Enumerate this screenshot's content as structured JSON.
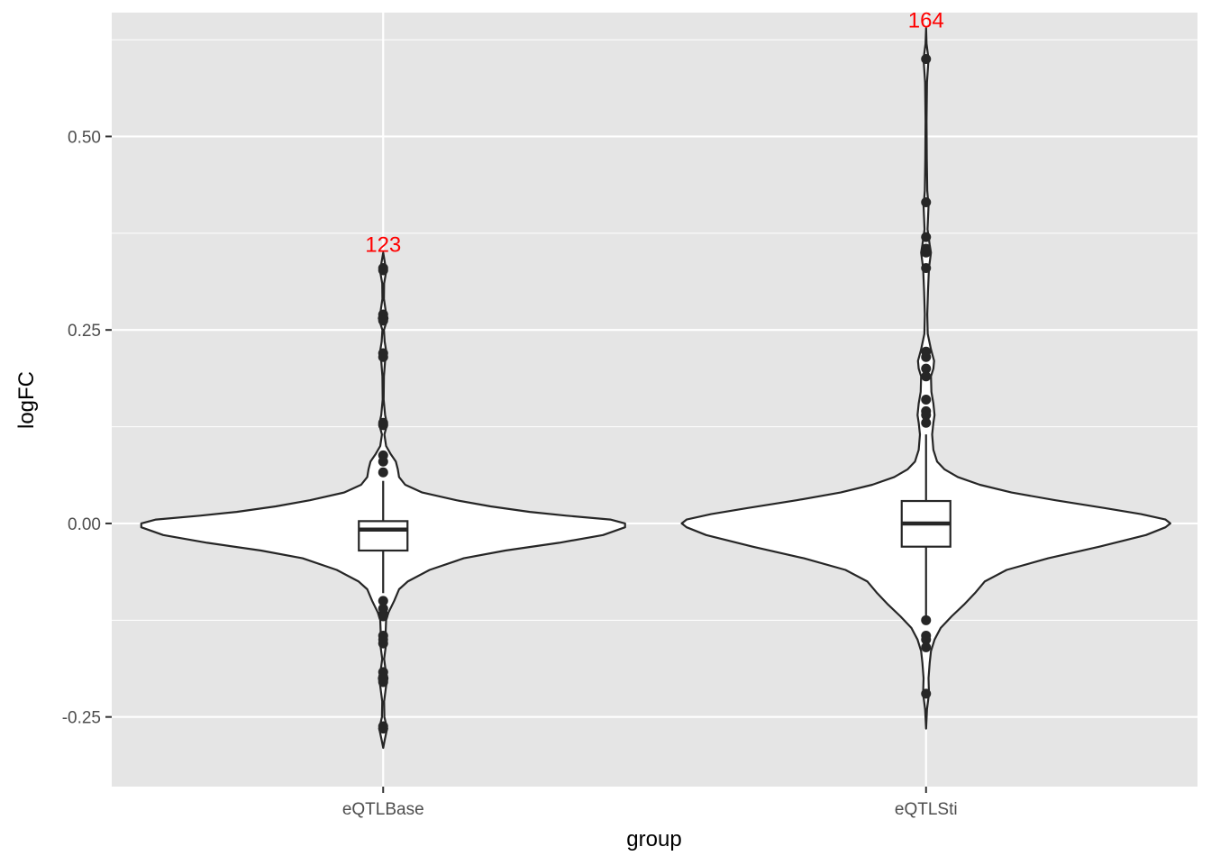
{
  "chart_data": {
    "type": "violin",
    "xlabel": "group",
    "ylabel": "logFC",
    "ylim": [
      -0.34,
      0.66
    ],
    "yticks": [
      {
        "value": -0.25,
        "label": "-0.25"
      },
      {
        "value": 0.0,
        "label": "0.00"
      },
      {
        "value": 0.25,
        "label": "0.25"
      },
      {
        "value": 0.5,
        "label": "0.50"
      }
    ],
    "categories": [
      "eQTLBase",
      "eQTLSti"
    ],
    "groups": [
      {
        "name": "eQTLBase",
        "count_label": "123",
        "count_label_y": 0.36,
        "box": {
          "lower_whisker": -0.09,
          "q1": -0.035,
          "median": -0.008,
          "q3": 0.003,
          "upper_whisker": 0.055
        },
        "outliers": [
          0.33,
          0.327,
          0.27,
          0.262,
          0.22,
          0.215,
          0.13,
          0.127,
          0.088,
          0.08,
          0.066,
          -0.1,
          -0.11,
          -0.117,
          -0.12,
          -0.145,
          -0.155,
          -0.192,
          -0.2,
          -0.205,
          -0.262,
          -0.265
        ],
        "violin_profile": [
          [
            -0.29,
            0.0
          ],
          [
            -0.28,
            0.006
          ],
          [
            -0.265,
            0.016
          ],
          [
            -0.25,
            0.005
          ],
          [
            -0.23,
            0.004
          ],
          [
            -0.21,
            0.012
          ],
          [
            -0.2,
            0.018
          ],
          [
            -0.19,
            0.01
          ],
          [
            -0.175,
            0.004
          ],
          [
            -0.16,
            0.01
          ],
          [
            -0.15,
            0.016
          ],
          [
            -0.14,
            0.01
          ],
          [
            -0.125,
            0.012
          ],
          [
            -0.115,
            0.022
          ],
          [
            -0.1,
            0.045
          ],
          [
            -0.085,
            0.065
          ],
          [
            -0.075,
            0.1
          ],
          [
            -0.06,
            0.19
          ],
          [
            -0.045,
            0.33
          ],
          [
            -0.035,
            0.5
          ],
          [
            -0.025,
            0.72
          ],
          [
            -0.015,
            0.9
          ],
          [
            -0.005,
            0.99
          ],
          [
            0.0,
            0.99
          ],
          [
            0.005,
            0.93
          ],
          [
            0.01,
            0.75
          ],
          [
            0.015,
            0.6
          ],
          [
            0.022,
            0.44
          ],
          [
            0.03,
            0.3
          ],
          [
            0.04,
            0.16
          ],
          [
            0.05,
            0.09
          ],
          [
            0.06,
            0.065
          ],
          [
            0.07,
            0.06
          ],
          [
            0.08,
            0.052
          ],
          [
            0.09,
            0.03
          ],
          [
            0.1,
            0.012
          ],
          [
            0.115,
            0.005
          ],
          [
            0.128,
            0.016
          ],
          [
            0.14,
            0.008
          ],
          [
            0.16,
            0.002
          ],
          [
            0.19,
            0.003
          ],
          [
            0.21,
            0.008
          ],
          [
            0.22,
            0.014
          ],
          [
            0.235,
            0.006
          ],
          [
            0.25,
            0.003
          ],
          [
            0.265,
            0.018
          ],
          [
            0.275,
            0.01
          ],
          [
            0.29,
            0.003
          ],
          [
            0.31,
            0.004
          ],
          [
            0.325,
            0.012
          ],
          [
            0.335,
            0.008
          ],
          [
            0.35,
            0.0
          ]
        ]
      },
      {
        "name": "eQTLSti",
        "count_label": "164",
        "count_label_y": 0.65,
        "box": {
          "lower_whisker": -0.12,
          "q1": -0.03,
          "median": 0.0,
          "q3": 0.029,
          "upper_whisker": 0.115
        },
        "outliers": [
          0.6,
          0.415,
          0.37,
          0.355,
          0.35,
          0.33,
          0.222,
          0.215,
          0.2,
          0.19,
          0.16,
          0.145,
          0.14,
          0.13,
          -0.125,
          -0.145,
          -0.15,
          -0.16,
          -0.22
        ],
        "violin_profile": [
          [
            -0.265,
            0.0
          ],
          [
            -0.24,
            0.004
          ],
          [
            -0.22,
            0.012
          ],
          [
            -0.2,
            0.01
          ],
          [
            -0.18,
            0.015
          ],
          [
            -0.165,
            0.02
          ],
          [
            -0.15,
            0.035
          ],
          [
            -0.135,
            0.06
          ],
          [
            -0.12,
            0.105
          ],
          [
            -0.105,
            0.155
          ],
          [
            -0.09,
            0.2
          ],
          [
            -0.075,
            0.24
          ],
          [
            -0.06,
            0.33
          ],
          [
            -0.045,
            0.5
          ],
          [
            -0.03,
            0.71
          ],
          [
            -0.015,
            0.9
          ],
          [
            -0.005,
            0.98
          ],
          [
            0.0,
            1.0
          ],
          [
            0.005,
            0.98
          ],
          [
            0.012,
            0.88
          ],
          [
            0.02,
            0.73
          ],
          [
            0.03,
            0.53
          ],
          [
            0.04,
            0.35
          ],
          [
            0.05,
            0.22
          ],
          [
            0.06,
            0.13
          ],
          [
            0.07,
            0.075
          ],
          [
            0.08,
            0.045
          ],
          [
            0.095,
            0.03
          ],
          [
            0.115,
            0.025
          ],
          [
            0.13,
            0.03
          ],
          [
            0.14,
            0.035
          ],
          [
            0.155,
            0.03
          ],
          [
            0.17,
            0.022
          ],
          [
            0.19,
            0.02
          ],
          [
            0.2,
            0.03
          ],
          [
            0.21,
            0.033
          ],
          [
            0.225,
            0.02
          ],
          [
            0.245,
            0.007
          ],
          [
            0.27,
            0.005
          ],
          [
            0.3,
            0.008
          ],
          [
            0.33,
            0.012
          ],
          [
            0.35,
            0.02
          ],
          [
            0.36,
            0.015
          ],
          [
            0.38,
            0.006
          ],
          [
            0.41,
            0.01
          ],
          [
            0.43,
            0.005
          ],
          [
            0.47,
            0.003
          ],
          [
            0.52,
            0.002
          ],
          [
            0.57,
            0.004
          ],
          [
            0.6,
            0.01
          ],
          [
            0.62,
            0.002
          ],
          [
            0.64,
            0.0
          ]
        ]
      }
    ],
    "colors": {
      "panel": "#e5e5e5",
      "grid": "#ffffff",
      "outline": "#262626",
      "fill": "#ffffff",
      "count_label": "#ff0000"
    }
  }
}
